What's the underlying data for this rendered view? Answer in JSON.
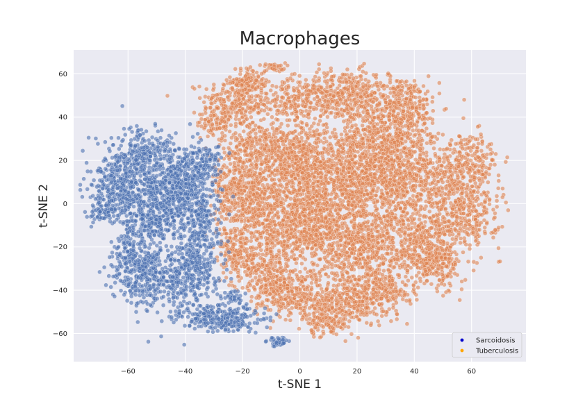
{
  "chart_data": {
    "type": "scatter",
    "title": "Macrophages",
    "xlabel": "t-SNE 1",
    "ylabel": "t-SNE 2",
    "xlim": [
      -79,
      79
    ],
    "ylim": [
      -73,
      71
    ],
    "xticks": [
      -60,
      -40,
      -20,
      0,
      20,
      40,
      60
    ],
    "yticks": [
      -60,
      -40,
      -20,
      0,
      20,
      40,
      60
    ],
    "grid": true,
    "background": "#eaeaf2",
    "legend_placement": "bottom-right",
    "series": [
      {
        "name": "Sarcoidosis",
        "color": "#4c72b0",
        "legend_color": "#0000cc",
        "clusters": [
          {
            "cx": -55,
            "cy": 22,
            "sx": 6,
            "sy": 6,
            "n": 260
          },
          {
            "cx": -63,
            "cy": 5,
            "sx": 5,
            "sy": 8,
            "n": 380
          },
          {
            "cx": -47,
            "cy": 6,
            "sx": 6,
            "sy": 6,
            "n": 320
          },
          {
            "cx": -50,
            "cy": -8,
            "sx": 5,
            "sy": 6,
            "n": 260
          },
          {
            "cx": -40,
            "cy": 15,
            "sx": 4,
            "sy": 6,
            "n": 190
          },
          {
            "cx": -35,
            "cy": -5,
            "sx": 4,
            "sy": 12,
            "n": 280
          },
          {
            "cx": -36,
            "cy": -28,
            "sx": 4,
            "sy": 10,
            "n": 230
          },
          {
            "cx": -55,
            "cy": -32,
            "sx": 5,
            "sy": 8,
            "n": 330
          },
          {
            "cx": -42,
            "cy": -36,
            "sx": 4,
            "sy": 6,
            "n": 160
          },
          {
            "cx": -60,
            "cy": -20,
            "sx": 2.5,
            "sy": 4,
            "n": 70
          },
          {
            "cx": -28,
            "cy": -53,
            "sx": 7,
            "sy": 3,
            "n": 280
          },
          {
            "cx": -23,
            "cy": -43,
            "sx": 2,
            "sy": 1.5,
            "n": 35
          },
          {
            "cx": -7,
            "cy": -64,
            "sx": 2,
            "sy": 1.2,
            "n": 45
          },
          {
            "cx": -33,
            "cy": 20,
            "sx": 3,
            "sy": 3,
            "n": 80
          },
          {
            "cx": -68,
            "cy": -4,
            "sx": 2,
            "sy": 2,
            "n": 40
          }
        ]
      },
      {
        "name": "Tuberculosis",
        "color": "#dd8452",
        "legend_color": "#ffa500",
        "clusters": [
          {
            "cx": -22,
            "cy": 47,
            "sx": 6,
            "sy": 6,
            "n": 250
          },
          {
            "cx": -18,
            "cy": 57,
            "sx": 3,
            "sy": 3,
            "n": 90
          },
          {
            "cx": -9,
            "cy": 63,
            "sx": 2,
            "sy": 1,
            "n": 30
          },
          {
            "cx": -2,
            "cy": 47,
            "sx": 6,
            "sy": 5,
            "n": 180
          },
          {
            "cx": 15,
            "cy": 50,
            "sx": 8,
            "sy": 6,
            "n": 380
          },
          {
            "cx": 35,
            "cy": 45,
            "sx": 7,
            "sy": 7,
            "n": 340
          },
          {
            "cx": 30,
            "cy": 30,
            "sx": 8,
            "sy": 7,
            "n": 330
          },
          {
            "cx": -30,
            "cy": 37,
            "sx": 3,
            "sy": 3,
            "n": 70
          },
          {
            "cx": -15,
            "cy": 27,
            "sx": 6,
            "sy": 6,
            "n": 250
          },
          {
            "cx": -17,
            "cy": 3,
            "sx": 6,
            "sy": 10,
            "n": 430
          },
          {
            "cx": 0,
            "cy": 20,
            "sx": 8,
            "sy": 8,
            "n": 480
          },
          {
            "cx": 20,
            "cy": 12,
            "sx": 10,
            "sy": 10,
            "n": 780
          },
          {
            "cx": 40,
            "cy": 10,
            "sx": 8,
            "sy": 10,
            "n": 480
          },
          {
            "cx": 58,
            "cy": 18,
            "sx": 6,
            "sy": 7,
            "n": 260
          },
          {
            "cx": 58,
            "cy": -5,
            "sx": 6,
            "sy": 8,
            "n": 300
          },
          {
            "cx": 0,
            "cy": -12,
            "sx": 9,
            "sy": 8,
            "n": 530
          },
          {
            "cx": 22,
            "cy": -20,
            "sx": 10,
            "sy": 10,
            "n": 680
          },
          {
            "cx": 45,
            "cy": -20,
            "sx": 6,
            "sy": 8,
            "n": 330
          },
          {
            "cx": 48,
            "cy": -30,
            "sx": 4,
            "sy": 6,
            "n": 120
          },
          {
            "cx": -12,
            "cy": -30,
            "sx": 6,
            "sy": 6,
            "n": 250
          },
          {
            "cx": -5,
            "cy": -42,
            "sx": 6,
            "sy": 5,
            "n": 230
          },
          {
            "cx": 15,
            "cy": -45,
            "sx": 8,
            "sy": 5,
            "n": 330
          },
          {
            "cx": 28,
            "cy": -40,
            "sx": 5,
            "sy": 5,
            "n": 170
          },
          {
            "cx": 10,
            "cy": -55,
            "sx": 5,
            "sy": 3,
            "n": 110
          },
          {
            "cx": -22,
            "cy": -22,
            "sx": 4,
            "sy": 5,
            "n": 130
          },
          {
            "cx": -25,
            "cy": 10,
            "sx": 3,
            "sy": 7,
            "n": 100
          },
          {
            "cx": 5,
            "cy": 0,
            "sx": 10,
            "sy": 8,
            "n": 330
          }
        ]
      }
    ]
  }
}
